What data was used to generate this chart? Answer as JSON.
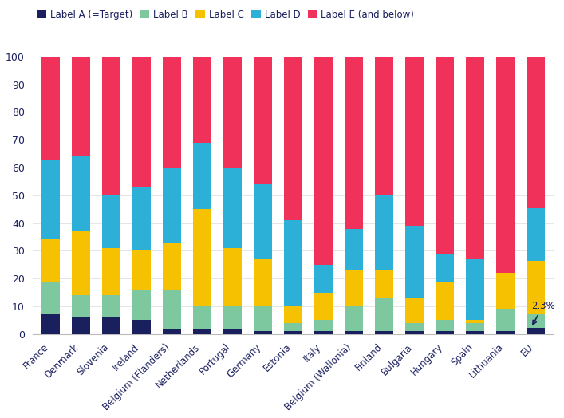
{
  "categories": [
    "France",
    "Denmark",
    "Slovenia",
    "Ireland",
    "Belgium (Flanders)",
    "Netherlands",
    "Portugal",
    "Germany",
    "Estonia",
    "Italy",
    "Belgium (Wallonia)",
    "Finland",
    "Bulgaria",
    "Hungary",
    "Spain",
    "Lithuania",
    "EU"
  ],
  "label_A": [
    7,
    6,
    6,
    5,
    2,
    2,
    2,
    1,
    1,
    1,
    1,
    1,
    1,
    1,
    1,
    1,
    2.3
  ],
  "label_B": [
    12,
    8,
    8,
    11,
    14,
    8,
    8,
    9,
    3,
    4,
    9,
    12,
    3,
    4,
    3,
    8,
    5
  ],
  "label_C": [
    15,
    23,
    17,
    14,
    17,
    35,
    21,
    17,
    6,
    10,
    13,
    10,
    9,
    14,
    1,
    13,
    19
  ],
  "label_D": [
    29,
    27,
    19,
    23,
    27,
    24,
    29,
    27,
    31,
    10,
    15,
    27,
    26,
    10,
    22,
    0,
    19
  ],
  "label_E": [
    37,
    36,
    50,
    47,
    40,
    31,
    40,
    46,
    59,
    75,
    62,
    50,
    61,
    71,
    73,
    78,
    54.7
  ],
  "colors": {
    "A": "#1a1f5e",
    "B": "#7ec8a0",
    "C": "#f5c100",
    "D": "#2db0d8",
    "E": "#f0315a"
  },
  "legend_labels": [
    "Label A (=Target)",
    "Label B",
    "Label C",
    "Label D",
    "Label E (and below)"
  ],
  "annotation_text": "2.3%",
  "ylim": [
    0,
    100
  ],
  "ylabel_ticks": [
    0,
    10,
    20,
    30,
    40,
    50,
    60,
    70,
    80,
    90,
    100
  ],
  "background_color": "#ffffff",
  "text_color": "#1a1f5e",
  "bar_width": 0.6
}
